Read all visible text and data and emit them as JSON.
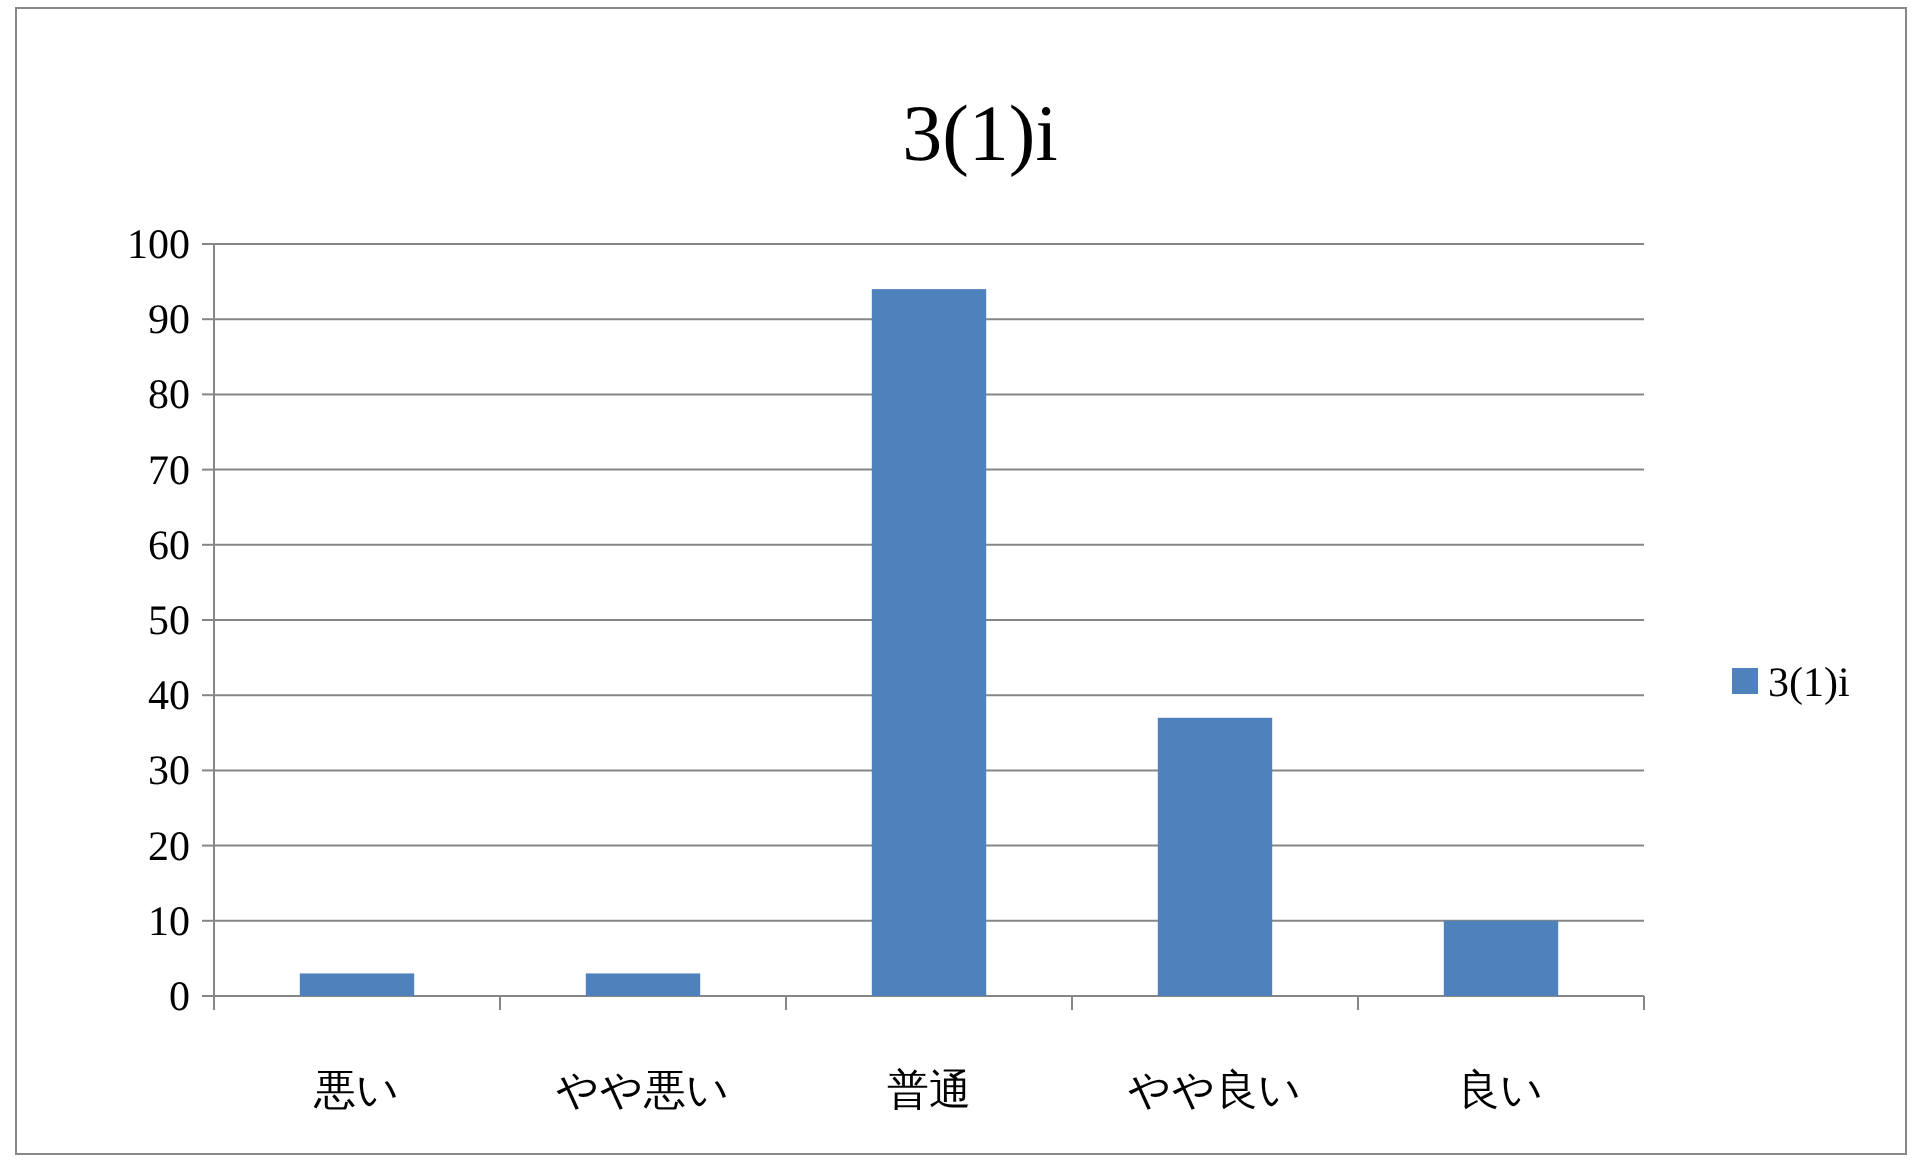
{
  "chart_data": {
    "type": "bar",
    "title": "3(1)i",
    "categories": [
      "悪い",
      "やや悪い",
      "普通",
      "やや良い",
      "良い"
    ],
    "series": [
      {
        "name": "3(1)i",
        "color": "#4f81bd",
        "values": [
          3,
          3,
          94,
          37,
          10
        ]
      }
    ],
    "ylim": [
      0,
      100
    ],
    "yticks": [
      0,
      10,
      20,
      30,
      40,
      50,
      60,
      70,
      80,
      90,
      100
    ],
    "grid": "y",
    "legend": "right"
  }
}
